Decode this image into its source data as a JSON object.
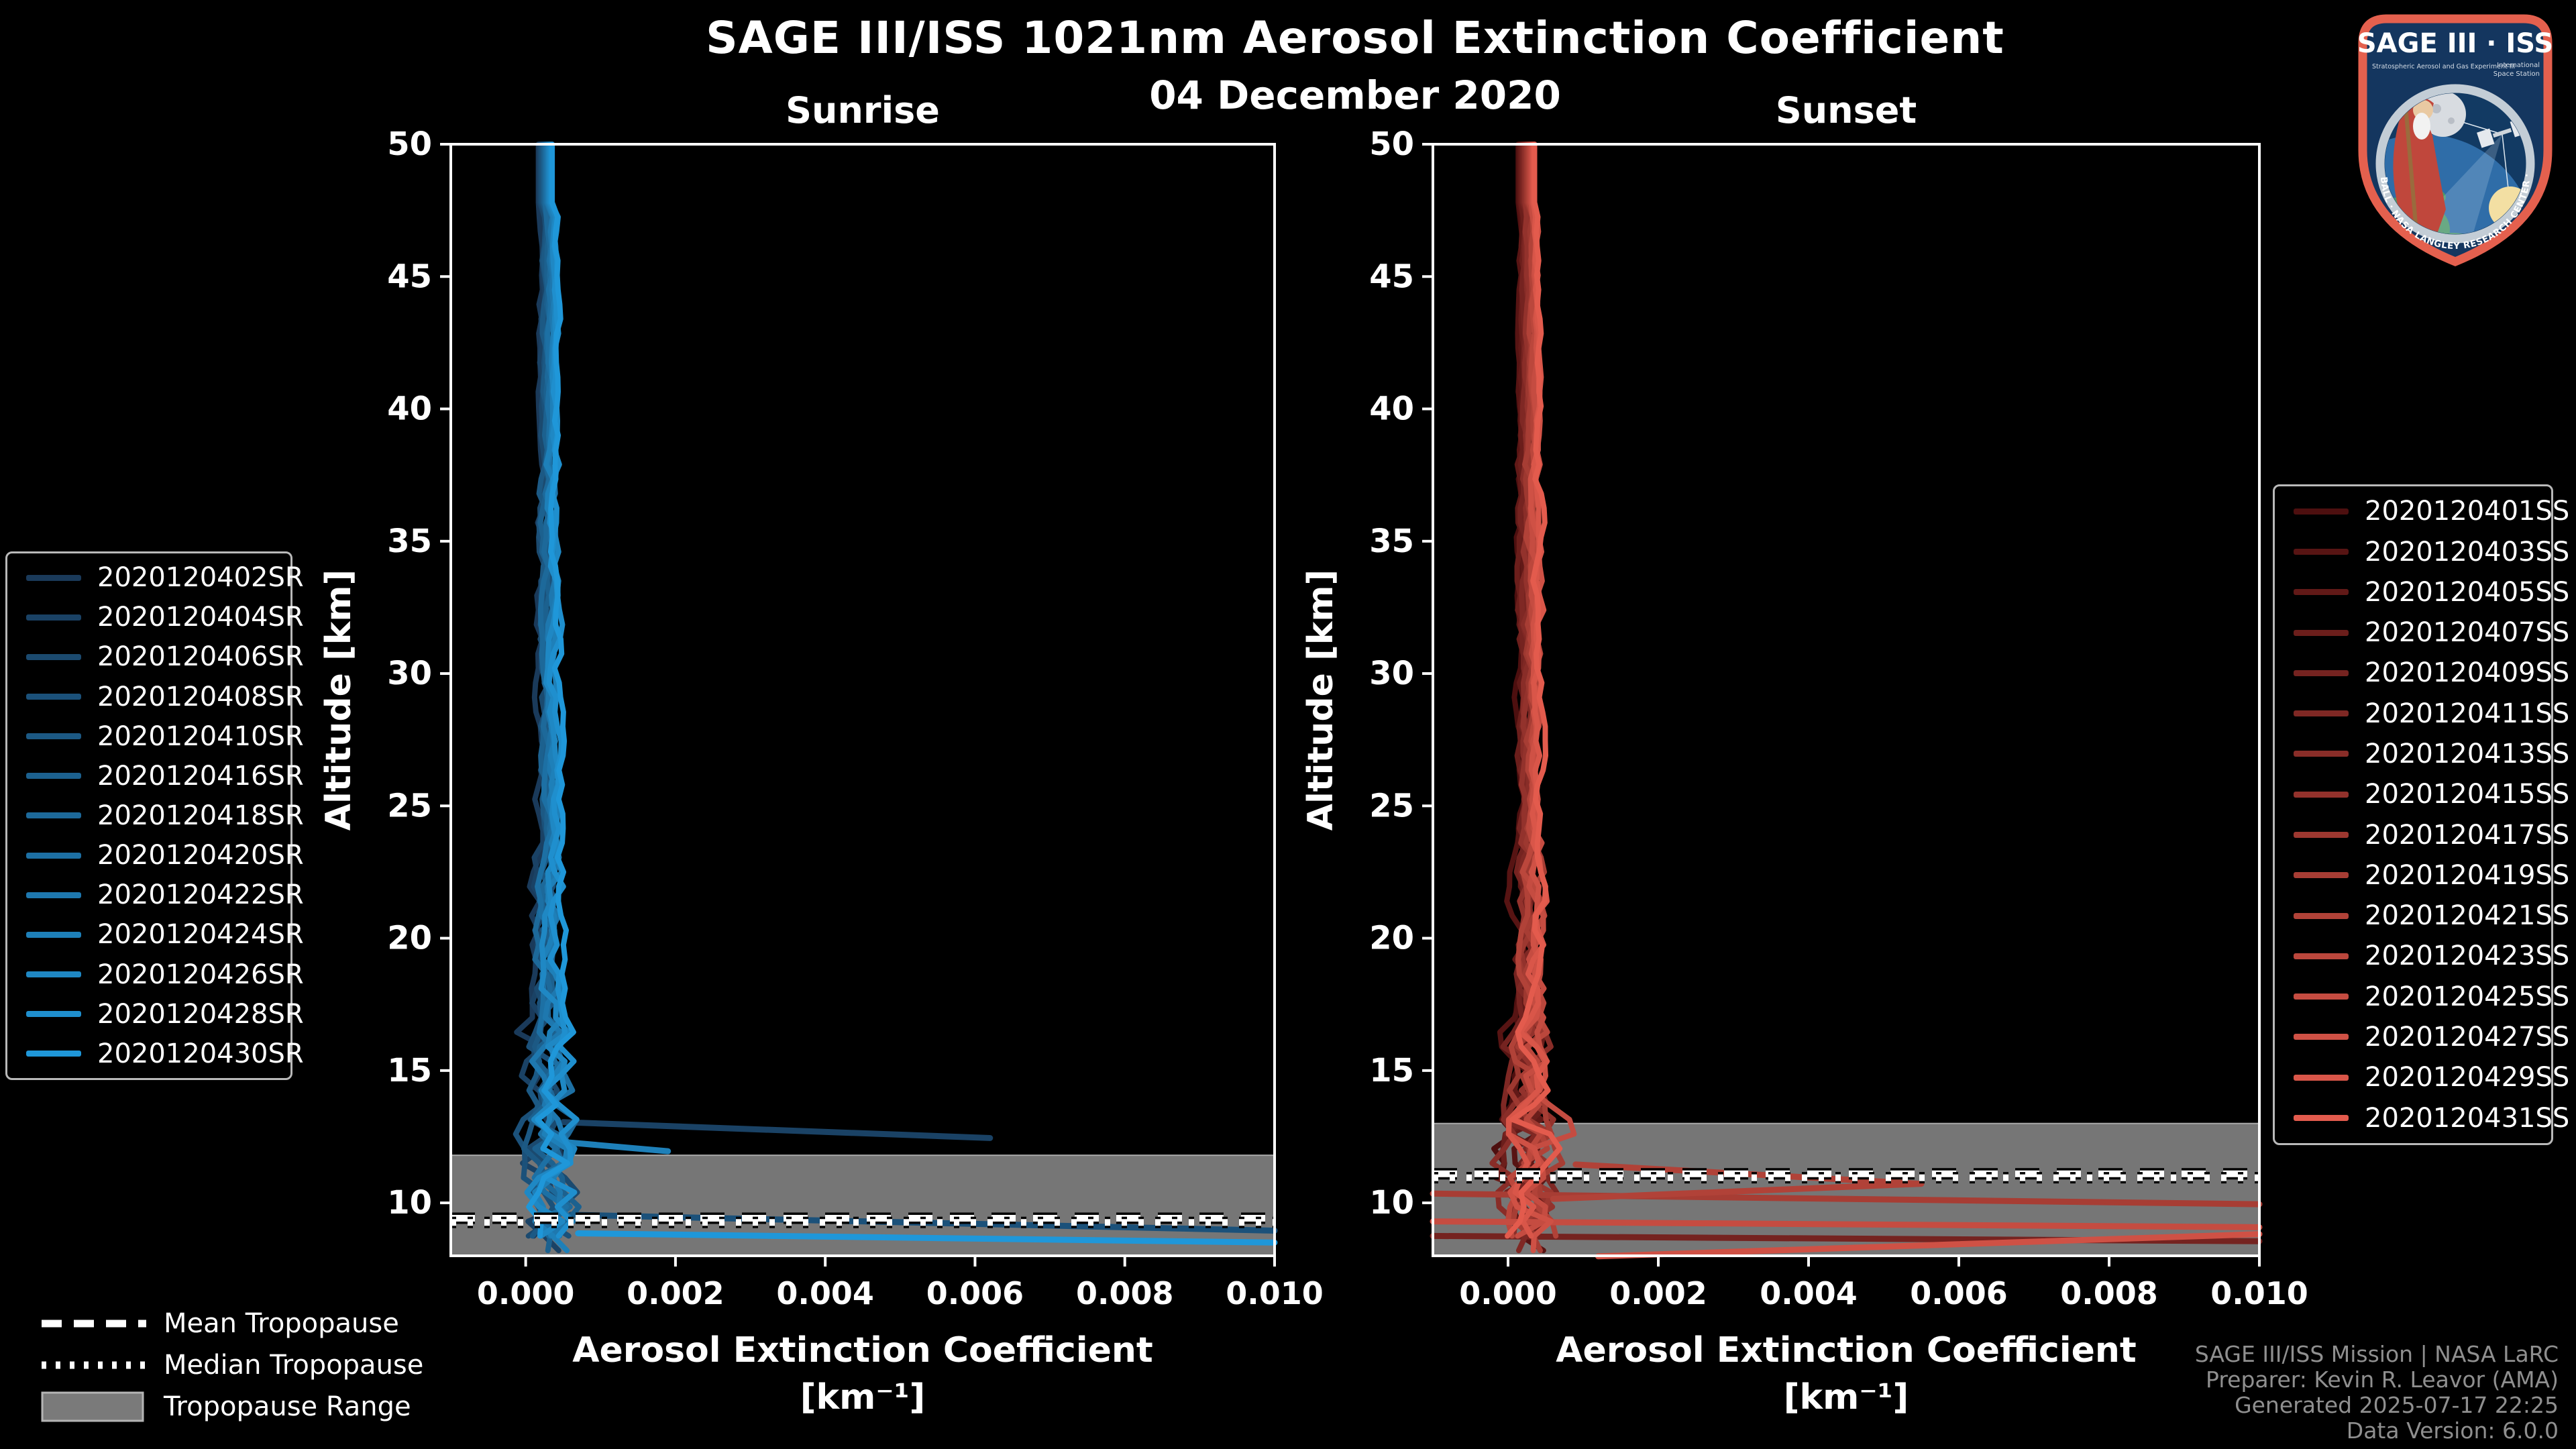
{
  "header": {
    "title": "SAGE III/ISS 1021nm Aerosol Extinction Coefficient",
    "date": "04 December 2020"
  },
  "footer": {
    "lines": [
      "SAGE III/ISS Mission | NASA LaRC",
      "Preparer: Kevin R. Leavor (AMA)",
      "Generated 2025-07-17 22:25",
      "Data Version: 6.0.0"
    ]
  },
  "tropopause_legend": {
    "mean": "Mean Tropopause",
    "median": "Median Tropopause",
    "range": "Tropopause Range"
  },
  "logo": {
    "title": "SAGE III · ISS",
    "sub_left": "Stratospheric Aerosol and Gas Experiment III",
    "sub_right1": "International",
    "sub_right2": "Space Station",
    "ring_text": "BALL · NASA LANGLEY RESEARCH CENTER · TAS-I · ESA"
  },
  "colors": {
    "background": "#000000",
    "plot_border": "#ffffff",
    "tropopause_band": "#767676",
    "tropopause_band_edge": "#a8a8a8",
    "tropopause_lines": "#ffffff",
    "footer_text": "#8f8f8f",
    "legend_border": "#b9b9b9",
    "logo_border": "#e4604e",
    "logo_field": "#14365f"
  },
  "chart_data": [
    {
      "id": "sunrise",
      "type": "line",
      "title": "Sunrise",
      "xlabel": "Aerosol Extinction Coefficient",
      "xlabel_units": "[km⁻¹]",
      "ylabel": "Altitude [km]",
      "xlim": [
        -0.001,
        0.01
      ],
      "ylim": [
        8,
        50
      ],
      "xticks": [
        0.0,
        0.002,
        0.004,
        0.006,
        0.008,
        0.01
      ],
      "xtick_labels": [
        "0.000",
        "0.002",
        "0.004",
        "0.006",
        "0.008",
        "0.010"
      ],
      "yticks": [
        10,
        15,
        20,
        25,
        30,
        35,
        40,
        45,
        50
      ],
      "grid": false,
      "legend_position": "outside-left",
      "tropopause": {
        "mean_km": 9.42,
        "median_km": 9.26,
        "range_top_km": 11.8,
        "range_bottom_km": 8.0
      },
      "series": [
        {
          "name": "2020120402SR",
          "color": "#1a3a5a",
          "base": 0.0002,
          "seed": 3,
          "segments": []
        },
        {
          "name": "2020120404SR",
          "color": "#1a4265",
          "base": 0.000218,
          "seed": 4,
          "segments": [
            [
              [
                0.0005,
                13.05
              ],
              [
                0.0062,
                12.45
              ]
            ]
          ]
        },
        {
          "name": "2020120406SR",
          "color": "#1b4a6f",
          "base": 0.000236,
          "seed": 5,
          "segments": []
        },
        {
          "name": "2020120408SR",
          "color": "#1b517a",
          "base": 0.000254,
          "seed": 6,
          "segments": [
            [
              [
                0.0006,
                9.55
              ],
              [
                0.01,
                8.95
              ]
            ]
          ]
        },
        {
          "name": "2020120410SR",
          "color": "#1c5984",
          "base": 0.000272,
          "seed": 7,
          "segments": []
        },
        {
          "name": "2020120416SR",
          "color": "#1c618f",
          "base": 0.00029,
          "seed": 8,
          "segments": []
        },
        {
          "name": "2020120418SR",
          "color": "#1d699a",
          "base": 0.000308,
          "seed": 9,
          "segments": []
        },
        {
          "name": "2020120420SR",
          "color": "#1d70a4",
          "base": 0.000326,
          "seed": 10,
          "segments": []
        },
        {
          "name": "2020120422SR",
          "color": "#1e78af",
          "base": 0.000344,
          "seed": 11,
          "segments": []
        },
        {
          "name": "2020120424SR",
          "color": "#1e80b9",
          "base": 0.000362,
          "seed": 12,
          "segments": [
            [
              [
                0.0005,
                12.3
              ],
              [
                0.0019,
                11.95
              ]
            ]
          ]
        },
        {
          "name": "2020120426SR",
          "color": "#1f88c4",
          "base": 0.00038,
          "seed": 13,
          "segments": []
        },
        {
          "name": "2020120428SR",
          "color": "#1f8fce",
          "base": 0.000398,
          "seed": 14,
          "segments": []
        },
        {
          "name": "2020120430SR",
          "color": "#1f97d9",
          "base": 0.000416,
          "seed": 15,
          "segments": [
            [
              [
                0.0007,
                8.85
              ],
              [
                0.01,
                8.5
              ]
            ]
          ]
        }
      ]
    },
    {
      "id": "sunset",
      "type": "line",
      "title": "Sunset",
      "xlabel": "Aerosol Extinction Coefficient",
      "xlabel_units": "[km⁻¹]",
      "ylabel": "Altitude [km]",
      "xlim": [
        -0.001,
        0.01
      ],
      "ylim": [
        8,
        50
      ],
      "xticks": [
        0.0,
        0.002,
        0.004,
        0.006,
        0.008,
        0.01
      ],
      "xtick_labels": [
        "0.000",
        "0.002",
        "0.004",
        "0.006",
        "0.008",
        "0.010"
      ],
      "yticks": [
        10,
        15,
        20,
        25,
        30,
        35,
        40,
        45,
        50
      ],
      "grid": false,
      "legend_position": "outside-right",
      "tropopause": {
        "mean_km": 11.1,
        "median_km": 10.95,
        "range_top_km": 13.0,
        "range_bottom_km": 8.0
      },
      "series": [
        {
          "name": "2020120401SS",
          "color": "#4d0f0f",
          "base": 0.00016,
          "seed": 31,
          "segments": []
        },
        {
          "name": "2020120403SS",
          "color": "#571413",
          "base": 0.000177,
          "seed": 32,
          "segments": []
        },
        {
          "name": "2020120405SS",
          "color": "#611917",
          "base": 0.000194,
          "seed": 33,
          "segments": []
        },
        {
          "name": "2020120407SS",
          "color": "#6b1e1b",
          "base": 0.000211,
          "seed": 34,
          "segments": []
        },
        {
          "name": "2020120409SS",
          "color": "#752320",
          "base": 0.000228,
          "seed": 35,
          "segments": [
            [
              [
                -0.001,
                8.75
              ],
              [
                0.01,
                8.55
              ]
            ]
          ]
        },
        {
          "name": "2020120411SS",
          "color": "#7f2824",
          "base": 0.000245,
          "seed": 36,
          "segments": []
        },
        {
          "name": "2020120413SS",
          "color": "#892d28",
          "base": 0.000262,
          "seed": 37,
          "segments": []
        },
        {
          "name": "2020120415SS",
          "color": "#93322c",
          "base": 0.000279,
          "seed": 38,
          "segments": []
        },
        {
          "name": "2020120417SS",
          "color": "#9d3830",
          "base": 0.000296,
          "seed": 39,
          "segments": []
        },
        {
          "name": "2020120419SS",
          "color": "#a73d34",
          "base": 0.000313,
          "seed": 40,
          "segments": [
            [
              [
                -0.001,
                10.35
              ],
              [
                0.01,
                9.95
              ]
            ]
          ]
        },
        {
          "name": "2020120421SS",
          "color": "#b14238",
          "base": 0.00033,
          "seed": 41,
          "segments": [
            [
              [
                0.0009,
                11.45
              ],
              [
                0.0055,
                10.72
              ],
              [
                0.0006,
                10.15
              ]
            ]
          ]
        },
        {
          "name": "2020120423SS",
          "color": "#bb473c",
          "base": 0.000347,
          "seed": 42,
          "segments": []
        },
        {
          "name": "2020120425SS",
          "color": "#c54c41",
          "base": 0.000364,
          "seed": 43,
          "segments": [
            [
              [
                -0.001,
                9.3
              ],
              [
                0.01,
                9.08
              ]
            ]
          ]
        },
        {
          "name": "2020120427SS",
          "color": "#cf5145",
          "base": 0.000381,
          "seed": 44,
          "segments": [
            [
              [
                0.0012,
                7.98
              ],
              [
                0.01,
                8.82
              ]
            ]
          ]
        },
        {
          "name": "2020120429SS",
          "color": "#d95649",
          "base": 0.000398,
          "seed": 45,
          "segments": []
        },
        {
          "name": "2020120431SS",
          "color": "#e35b4d",
          "base": 0.000415,
          "seed": 46,
          "segments": []
        }
      ]
    }
  ]
}
